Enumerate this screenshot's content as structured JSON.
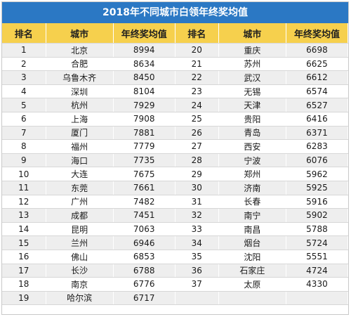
{
  "title": "2018年不同城市白领年终奖均值",
  "headers": [
    "排名",
    "城市",
    "年终奖均值",
    "排名",
    "城市",
    "年终奖均值"
  ],
  "rows": [
    [
      [
        "1",
        "北京",
        "8994"
      ],
      [
        "20",
        "重庆",
        "6698"
      ]
    ],
    [
      [
        "2",
        "合肥",
        "8634"
      ],
      [
        "21",
        "苏州",
        "6625"
      ]
    ],
    [
      [
        "3",
        "乌鲁木齐",
        "8450"
      ],
      [
        "22",
        "武汉",
        "6612"
      ]
    ],
    [
      [
        "4",
        "深圳",
        "8104"
      ],
      [
        "23",
        "无锡",
        "6574"
      ]
    ],
    [
      [
        "5",
        "杭州",
        "7929"
      ],
      [
        "24",
        "天津",
        "6527"
      ]
    ],
    [
      [
        "6",
        "上海",
        "7908"
      ],
      [
        "25",
        "贵阳",
        "6416"
      ]
    ],
    [
      [
        "7",
        "厦门",
        "7881"
      ],
      [
        "26",
        "青岛",
        "6371"
      ]
    ],
    [
      [
        "8",
        "福州",
        "7779"
      ],
      [
        "27",
        "西安",
        "6283"
      ]
    ],
    [
      [
        "9",
        "海口",
        "7735"
      ],
      [
        "28",
        "宁波",
        "6076"
      ]
    ],
    [
      [
        "10",
        "大连",
        "7675"
      ],
      [
        "29",
        "郑州",
        "5962"
      ]
    ],
    [
      [
        "11",
        "东莞",
        "7661"
      ],
      [
        "30",
        "济南",
        "5925"
      ]
    ],
    [
      [
        "12",
        "广州",
        "7482"
      ],
      [
        "31",
        "长春",
        "5916"
      ]
    ],
    [
      [
        "13",
        "成都",
        "7451"
      ],
      [
        "32",
        "南宁",
        "5902"
      ]
    ],
    [
      [
        "14",
        "昆明",
        "7063"
      ],
      [
        "33",
        "南昌",
        "5788"
      ]
    ],
    [
      [
        "15",
        "兰州",
        "6946"
      ],
      [
        "34",
        "烟台",
        "5724"
      ]
    ],
    [
      [
        "16",
        "佛山",
        "6853"
      ],
      [
        "35",
        "沈阳",
        "5551"
      ]
    ],
    [
      [
        "17",
        "长沙",
        "6788"
      ],
      [
        "36",
        "石家庄",
        "4724"
      ]
    ],
    [
      [
        "18",
        "南京",
        "6776"
      ],
      [
        "37",
        "太原",
        "4330"
      ]
    ],
    [
      [
        "19",
        "哈尔滨",
        "6717"
      ],
      [
        "",
        "",
        ""
      ]
    ]
  ]
}
